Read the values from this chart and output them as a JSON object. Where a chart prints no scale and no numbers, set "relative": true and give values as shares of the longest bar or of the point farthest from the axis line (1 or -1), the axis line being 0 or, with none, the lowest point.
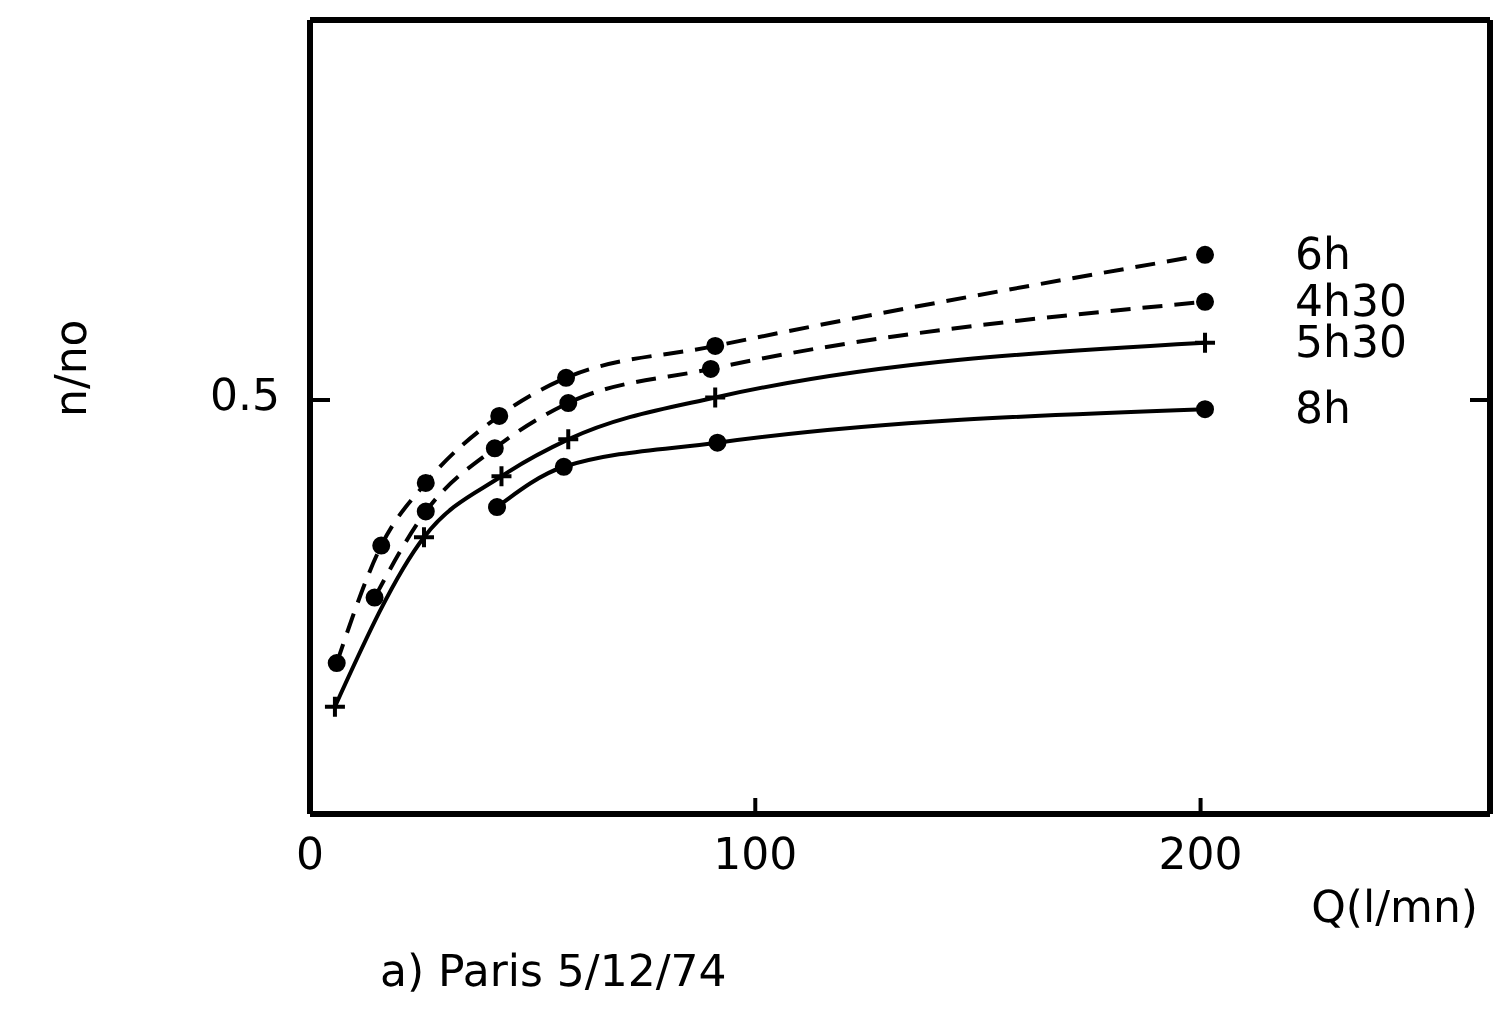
{
  "chart_data": {
    "type": "line",
    "relative": true,
    "xlabel": "Q(l/mn)",
    "ylabel": "n/no",
    "annotations": [
      "0.5",
      "a) Paris 5/12/74"
    ],
    "xlim": [
      0,
      265
    ],
    "xticks": [
      0,
      100,
      200
    ],
    "series": [
      {
        "name": "6h",
        "color": "#000000",
        "marker": "circle",
        "line_style": "dashed",
        "x": [
          6,
          16,
          26,
          42.5,
          57.5,
          91,
          201
        ],
        "values": [
          0.27,
          0.48,
          0.592,
          0.712,
          0.78,
          0.837,
          1.0
        ]
      },
      {
        "name": "4h30",
        "color": "#000000",
        "marker": "circle",
        "line_style": "dashed",
        "x": [
          14.5,
          26,
          41.5,
          58,
          90,
          201
        ],
        "values": [
          0.387,
          0.541,
          0.654,
          0.735,
          0.796,
          0.916
        ]
      },
      {
        "name": "5h30",
        "color": "#000000",
        "marker": "cross",
        "line_style": "solid",
        "x": [
          5.6,
          25.6,
          43,
          58,
          91,
          201
        ],
        "values": [
          0.192,
          0.495,
          0.604,
          0.67,
          0.745,
          0.843
        ]
      },
      {
        "name": "8h",
        "color": "#000000",
        "marker": "circle",
        "line_style": "solid",
        "x": [
          42,
          57,
          91.5,
          201
        ],
        "values": [
          0.549,
          0.621,
          0.664,
          0.724
        ]
      }
    ]
  }
}
